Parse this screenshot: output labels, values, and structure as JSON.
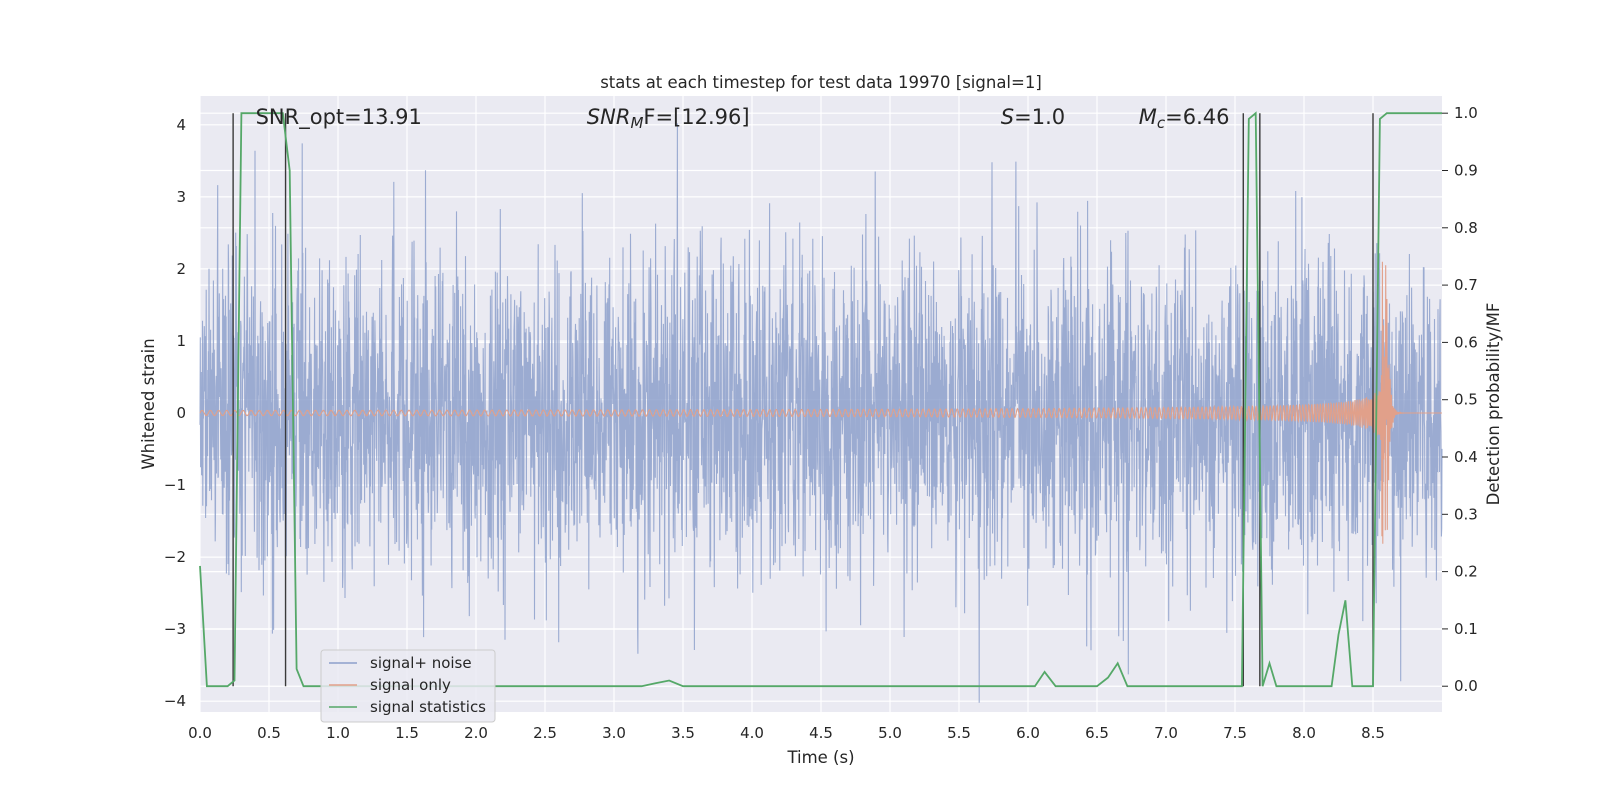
{
  "chart_data": {
    "type": "line",
    "title": "stats at each timestep for test data 19970 [signal=1]",
    "xlabel": "Time (s)",
    "ylabel": "Whitened strain",
    "y2label": "Detection probability/MF",
    "xlim": [
      0.0,
      9.0
    ],
    "ylim": [
      -4.15,
      4.4
    ],
    "y2lim": [
      -0.045,
      1.03
    ],
    "xticks": [
      0.0,
      0.5,
      1.0,
      1.5,
      2.0,
      2.5,
      3.0,
      3.5,
      4.0,
      4.5,
      5.0,
      5.5,
      6.0,
      6.5,
      7.0,
      7.5,
      8.0,
      8.5
    ],
    "xtick_labels": [
      "0.0",
      "0.5",
      "1.0",
      "1.5",
      "2.0",
      "2.5",
      "3.0",
      "3.5",
      "4.0",
      "4.5",
      "5.0",
      "5.5",
      "6.0",
      "6.5",
      "7.0",
      "7.5",
      "8.0",
      "8.5"
    ],
    "yticks": [
      -4,
      -3,
      -2,
      -1,
      0,
      1,
      2,
      3,
      4
    ],
    "ytick_labels": [
      "−4",
      "−3",
      "−2",
      "−1",
      "0",
      "1",
      "2",
      "3",
      "4"
    ],
    "y2ticks": [
      0.0,
      0.1,
      0.2,
      0.3,
      0.4,
      0.5,
      0.6,
      0.7,
      0.8,
      0.9,
      1.0
    ],
    "y2tick_labels": [
      "0.0",
      "0.1",
      "0.2",
      "0.3",
      "0.4",
      "0.5",
      "0.6",
      "0.7",
      "0.8",
      "0.9",
      "1.0"
    ],
    "annotations": [
      {
        "name": "snr-opt",
        "text": "SNR_opt=13.91",
        "x": 0.2
      },
      {
        "name": "snr-mf",
        "text": "SNR_MF=[12.96]",
        "base": "SNR",
        "sub": "M",
        "rest": "F=[12.96]",
        "x": 2.6
      },
      {
        "name": "s-stat",
        "text": "S=1.0",
        "base": "S",
        "rest": "=1.0",
        "x": 5.6
      },
      {
        "name": "chirp-mass",
        "text": "M_c=6.46",
        "base": "M",
        "sub": "c",
        "rest": "=6.46",
        "x": 6.6
      }
    ],
    "series": [
      {
        "name": "signal+ noise",
        "color": "#8da0cb",
        "kind": "noise",
        "noise_amplitude": 2.0,
        "n_samples": 4000,
        "seed": 19970
      },
      {
        "name": "signal only",
        "color": "#e1a08a",
        "kind": "chirp",
        "merger_time": 8.6,
        "start_time": 0.0,
        "peak_amplitude": 2.1
      },
      {
        "name": "signal statistics",
        "color": "#55a868",
        "kind": "probability",
        "axis": "right",
        "x": [
          0.0,
          0.05,
          0.1,
          0.15,
          0.2,
          0.25,
          0.3,
          0.35,
          0.4,
          0.45,
          0.5,
          0.55,
          0.6,
          0.65,
          0.7,
          0.75,
          0.8,
          3.2,
          3.3,
          3.4,
          3.5,
          6.05,
          6.12,
          6.2,
          6.5,
          6.58,
          6.65,
          6.72,
          7.55,
          7.6,
          7.65,
          7.7,
          7.75,
          7.8,
          8.2,
          8.25,
          8.3,
          8.35,
          8.4,
          8.45,
          8.5,
          8.55,
          8.6,
          9.0
        ],
        "y": [
          0.21,
          0.0,
          0.0,
          0.0,
          0.0,
          0.01,
          1.0,
          1.0,
          1.0,
          1.0,
          1.0,
          1.0,
          1.0,
          0.9,
          0.03,
          0.0,
          0.0,
          0.0,
          0.005,
          0.01,
          0.0,
          0.0,
          0.025,
          0.0,
          0.0,
          0.015,
          0.04,
          0.0,
          0.0,
          0.99,
          1.0,
          0.0,
          0.04,
          0.0,
          0.0,
          0.09,
          0.15,
          0.0,
          0.0,
          0.0,
          0.0,
          0.99,
          1.0,
          1.0
        ]
      },
      {
        "name": "vertical markers",
        "color": "#3a3a3a",
        "kind": "vlines",
        "x": [
          0.24,
          0.62,
          7.56,
          7.68,
          8.5
        ]
      }
    ],
    "legend": {
      "position": "lower-left",
      "entries": [
        "signal+ noise",
        "signal only",
        "signal statistics"
      ]
    }
  }
}
